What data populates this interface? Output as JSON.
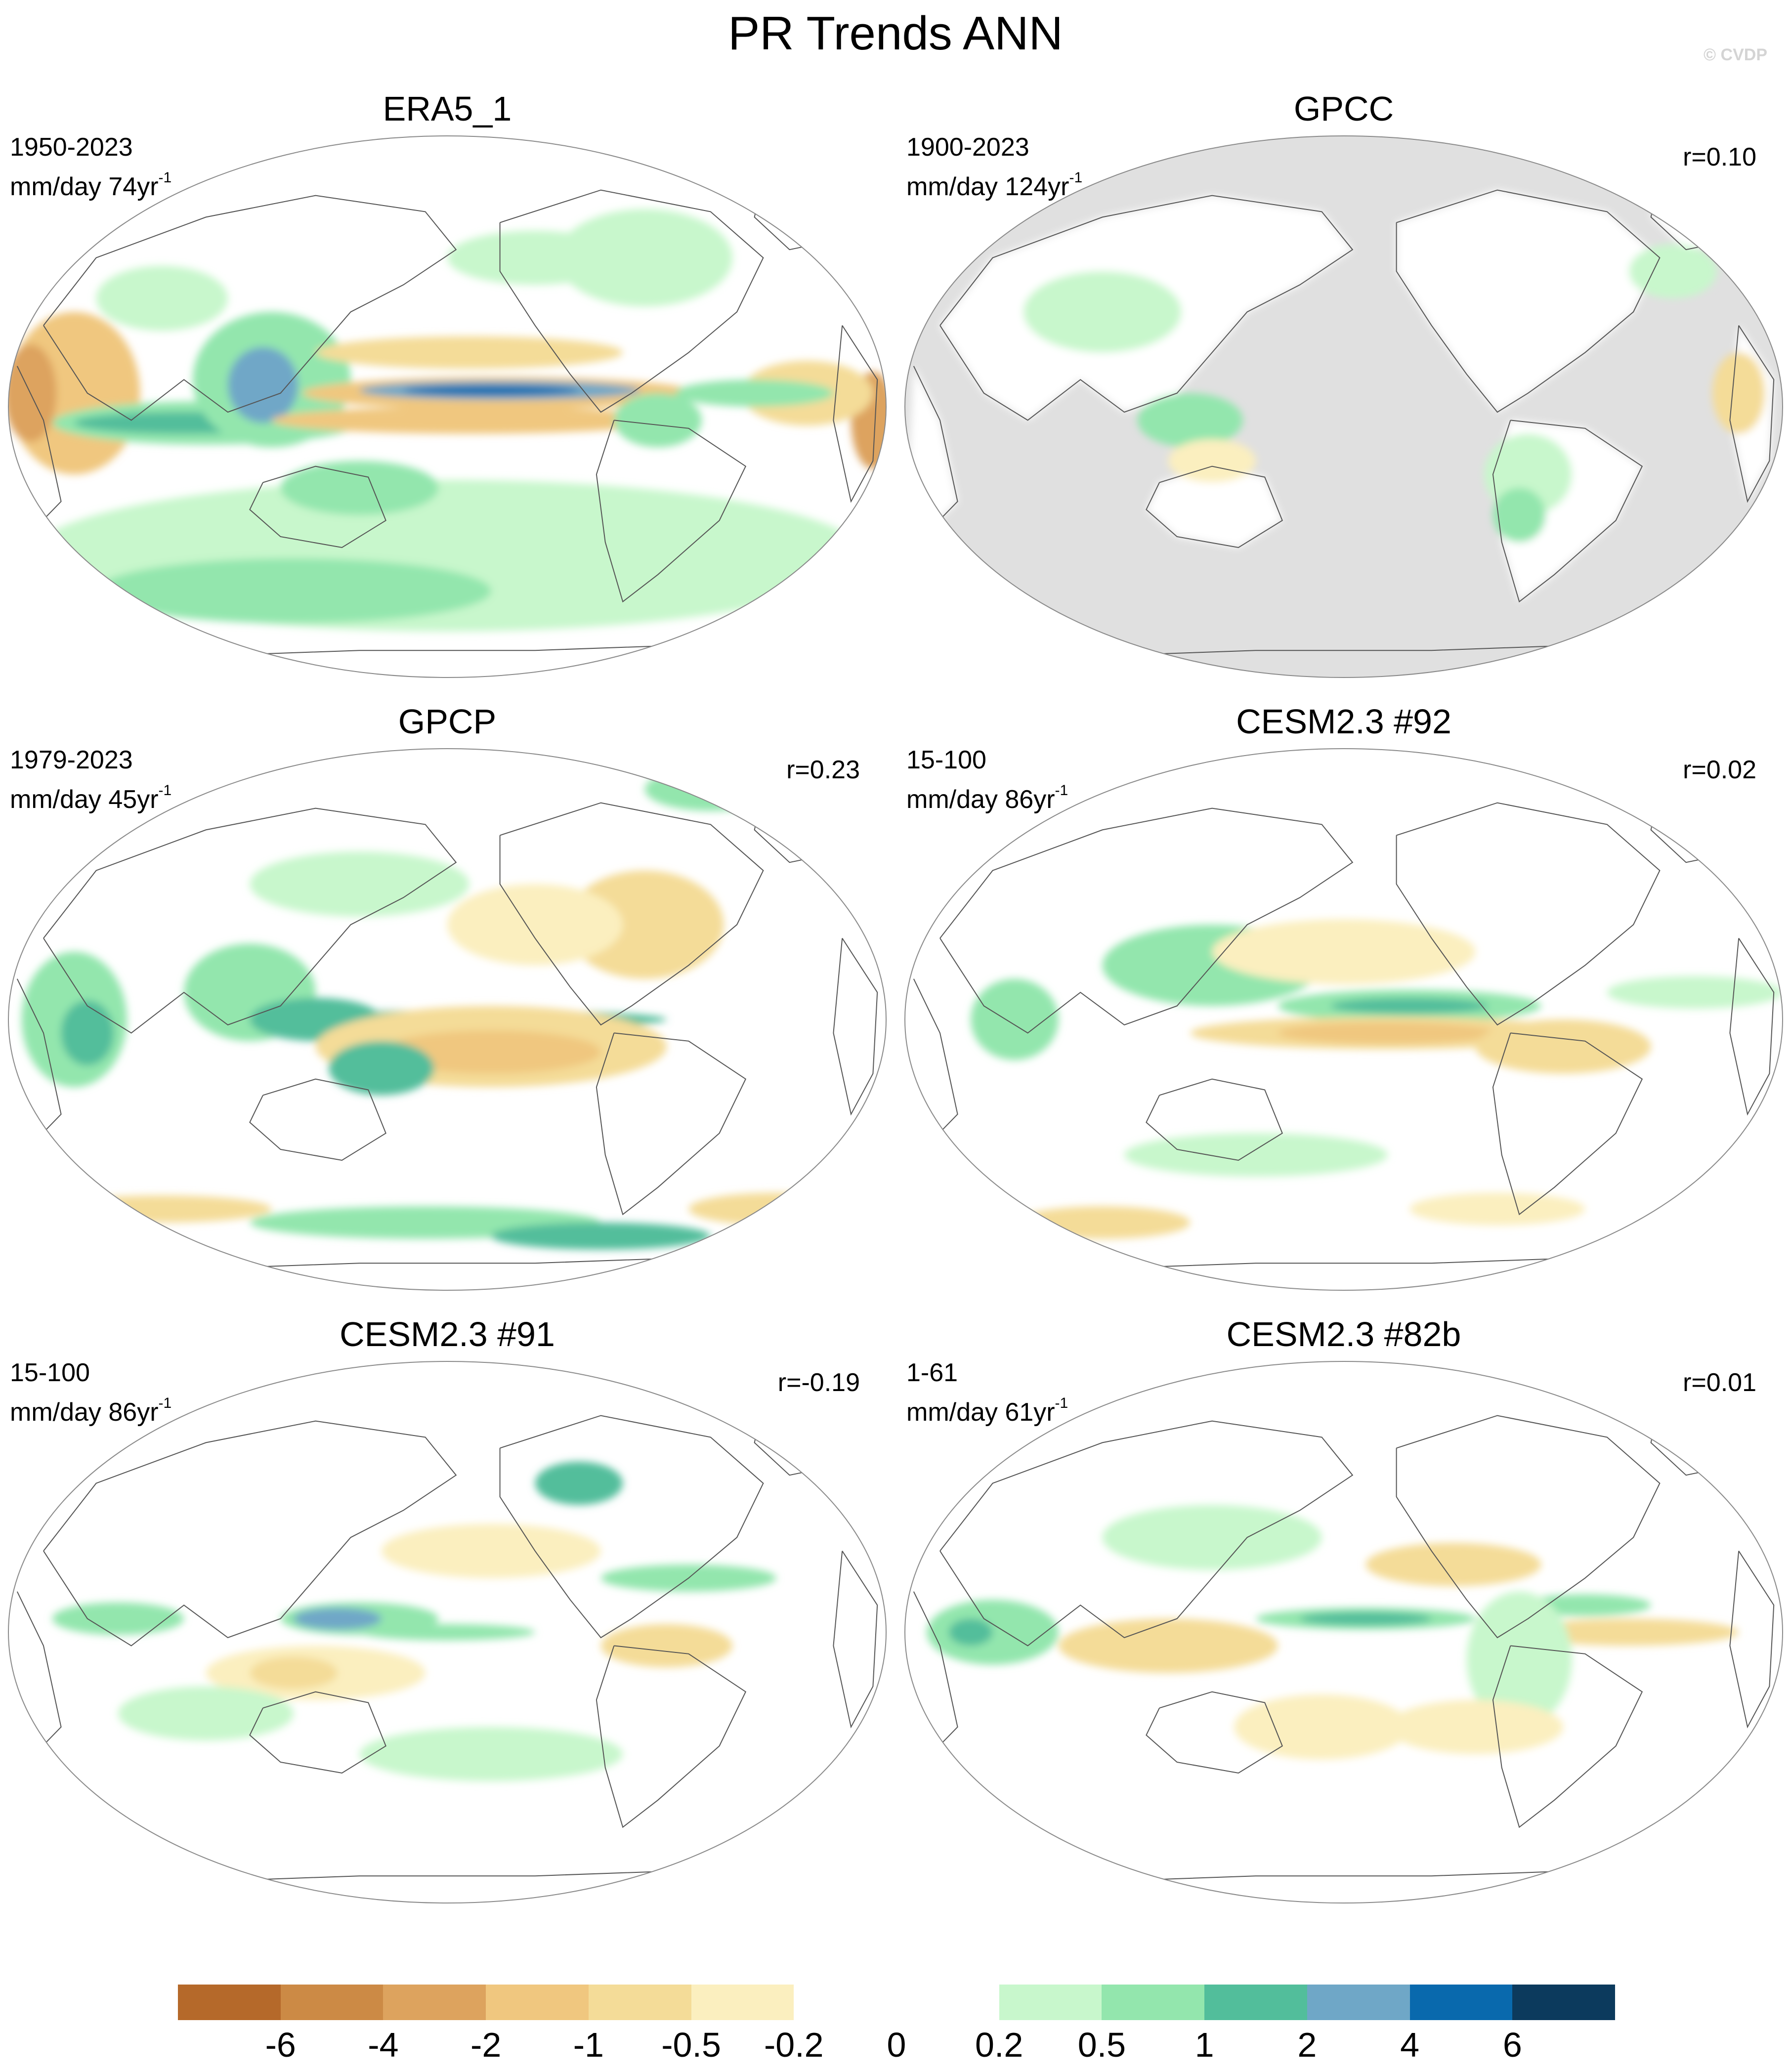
{
  "figure": {
    "title": "PR Trends ANN",
    "copyright": "© CVDP"
  },
  "panels": [
    {
      "title": "ERA5_1",
      "period": "1950-2023",
      "units": "mm/day 74yr",
      "units_sup": "-1",
      "corr": "",
      "mask": false,
      "style": "era5"
    },
    {
      "title": "GPCC",
      "period": "1900-2023",
      "units": "mm/day 124yr",
      "units_sup": "-1",
      "corr": "r=0.10",
      "mask": true,
      "style": "gpcc"
    },
    {
      "title": "GPCP",
      "period": "1979-2023",
      "units": "mm/day 45yr",
      "units_sup": "-1",
      "corr": "r=0.23",
      "mask": false,
      "style": "gpcp"
    },
    {
      "title": "CESM2.3 #92",
      "period": "15-100",
      "units": "mm/day 86yr",
      "units_sup": "-1",
      "corr": "r=0.02",
      "mask": false,
      "style": "m92"
    },
    {
      "title": "CESM2.3 #91",
      "period": "15-100",
      "units": "mm/day 86yr",
      "units_sup": "-1",
      "corr": "r=-0.19",
      "mask": false,
      "style": "m91"
    },
    {
      "title": "CESM2.3 #82b",
      "period": "1-61",
      "units": "mm/day 61yr",
      "units_sup": "-1",
      "corr": "r=0.01",
      "mask": false,
      "style": "m82"
    }
  ],
  "colorbar": {
    "labels": [
      "-6",
      "-4",
      "-2",
      "-1",
      "-0.5",
      "-0.2",
      "0",
      "0.2",
      "0.5",
      "1",
      "2",
      "4",
      "6"
    ],
    "colors": [
      "#b5692a",
      "#cc8a45",
      "#dda35e",
      "#f0c77f",
      "#f4dc98",
      "#fbefbf",
      "#ffffff",
      "#ffffff",
      "#c8f7cc",
      "#93e6ad",
      "#52be9b",
      "#6fa7c7",
      "#0969ad",
      "#0c3a5d"
    ]
  }
}
